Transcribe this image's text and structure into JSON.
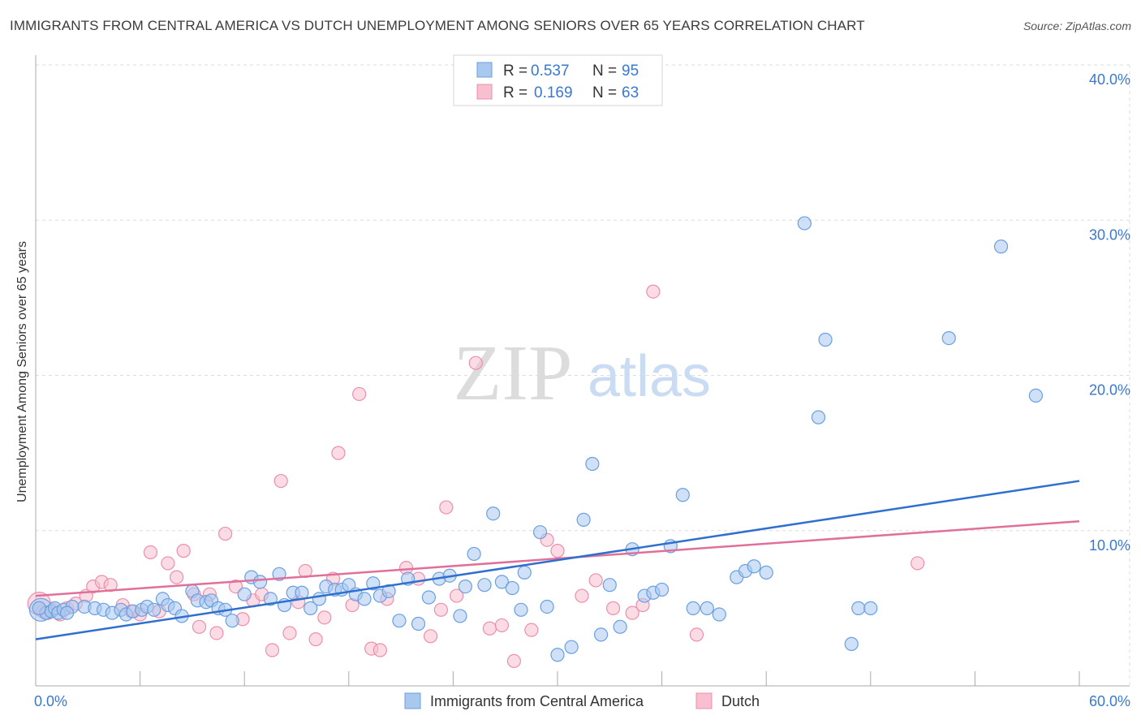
{
  "title": "IMMIGRANTS FROM CENTRAL AMERICA VS DUTCH UNEMPLOYMENT AMONG SENIORS OVER 65 YEARS CORRELATION CHART",
  "source": "Source: ZipAtlas.com",
  "watermark": {
    "zip": "ZIP",
    "atlas": "atlas"
  },
  "legend": {
    "rows": [
      {
        "r_label": "R =",
        "r_value": "0.537",
        "n_label": "N =",
        "n_value": "95"
      },
      {
        "r_label": "R =",
        "r_value": "0.169",
        "n_label": "N =",
        "n_value": "63"
      }
    ]
  },
  "colors": {
    "blue_fill": "#a9c8f0",
    "blue_stroke": "#6a9fe0",
    "blue_line": "#2f6fce",
    "blue_text": "#3a78d0",
    "pink_fill": "#f7bfd0",
    "pink_stroke": "#ec8fad",
    "pink_line": "#e0709a",
    "grid": "#dddddd",
    "axis_text": "#3a78d0"
  },
  "chart_data": {
    "type": "scatter",
    "title": "IMMIGRANTS FROM CENTRAL AMERICA VS DUTCH UNEMPLOYMENT AMONG SENIORS OVER 65 YEARS CORRELATION CHART",
    "xlabel": "",
    "ylabel": "Unemployment Among Seniors over 65 years",
    "xlim": [
      0,
      60
    ],
    "ylim": [
      0,
      40
    ],
    "x_tick_labels": [
      "0.0%",
      "60.0%"
    ],
    "y_ticks": [
      10,
      20,
      30,
      40
    ],
    "y_tick_labels": [
      "10.0%",
      "20.0%",
      "30.0%",
      "40.0%"
    ],
    "grid": true,
    "legend_position": "top-center",
    "series": [
      {
        "name": "Immigrants from Central America",
        "color": "#6a9fe0",
        "trend": [
          [
            0,
            3.0
          ],
          [
            60,
            13.2
          ]
        ],
        "points": [
          [
            0.3,
            4.9
          ],
          [
            0.6,
            4.7
          ],
          [
            0.9,
            4.8
          ],
          [
            1.1,
            5.0
          ],
          [
            1.3,
            4.7
          ],
          [
            1.6,
            4.9
          ],
          [
            2.1,
            5.1
          ],
          [
            2.8,
            5.1
          ],
          [
            3.4,
            5.0
          ],
          [
            3.9,
            4.9
          ],
          [
            4.4,
            4.7
          ],
          [
            4.9,
            4.9
          ],
          [
            5.2,
            4.6
          ],
          [
            5.6,
            4.8
          ],
          [
            6.1,
            4.9
          ],
          [
            6.4,
            5.1
          ],
          [
            6.8,
            4.9
          ],
          [
            7.3,
            5.6
          ],
          [
            7.6,
            5.2
          ],
          [
            8.0,
            5.0
          ],
          [
            8.4,
            4.5
          ],
          [
            9.0,
            6.1
          ],
          [
            9.3,
            5.5
          ],
          [
            9.8,
            5.4
          ],
          [
            10.1,
            5.5
          ],
          [
            10.5,
            5.0
          ],
          [
            10.9,
            4.9
          ],
          [
            11.3,
            4.2
          ],
          [
            12.0,
            5.9
          ],
          [
            12.4,
            7.0
          ],
          [
            12.9,
            6.7
          ],
          [
            13.5,
            5.6
          ],
          [
            14.0,
            7.2
          ],
          [
            14.3,
            5.2
          ],
          [
            14.8,
            6.0
          ],
          [
            15.3,
            6.0
          ],
          [
            15.8,
            5.0
          ],
          [
            16.3,
            5.6
          ],
          [
            16.7,
            6.4
          ],
          [
            17.2,
            6.2
          ],
          [
            17.6,
            6.2
          ],
          [
            18.0,
            6.5
          ],
          [
            18.4,
            5.9
          ],
          [
            18.9,
            5.6
          ],
          [
            19.4,
            6.6
          ],
          [
            19.8,
            5.8
          ],
          [
            20.3,
            6.1
          ],
          [
            20.9,
            4.2
          ],
          [
            21.4,
            6.9
          ],
          [
            22.0,
            4.0
          ],
          [
            22.6,
            5.7
          ],
          [
            23.2,
            6.9
          ],
          [
            23.8,
            7.1
          ],
          [
            24.4,
            4.5
          ],
          [
            24.7,
            6.4
          ],
          [
            25.2,
            8.5
          ],
          [
            25.8,
            6.5
          ],
          [
            26.3,
            11.1
          ],
          [
            26.8,
            6.7
          ],
          [
            27.4,
            6.3
          ],
          [
            27.9,
            4.9
          ],
          [
            28.1,
            7.3
          ],
          [
            29.0,
            9.9
          ],
          [
            29.4,
            5.1
          ],
          [
            30.0,
            2.0
          ],
          [
            30.8,
            2.5
          ],
          [
            31.5,
            10.7
          ],
          [
            32.0,
            14.3
          ],
          [
            32.5,
            3.3
          ],
          [
            33.0,
            6.5
          ],
          [
            33.6,
            3.8
          ],
          [
            34.3,
            8.8
          ],
          [
            35.0,
            5.8
          ],
          [
            35.5,
            6.0
          ],
          [
            36.0,
            6.2
          ],
          [
            36.5,
            9.0
          ],
          [
            37.2,
            12.3
          ],
          [
            37.8,
            5.0
          ],
          [
            38.6,
            5.0
          ],
          [
            39.3,
            4.6
          ],
          [
            40.3,
            7.0
          ],
          [
            40.8,
            7.4
          ],
          [
            41.3,
            7.7
          ],
          [
            42.0,
            7.3
          ],
          [
            44.2,
            29.8
          ],
          [
            45.0,
            17.3
          ],
          [
            45.4,
            22.3
          ],
          [
            46.9,
            2.7
          ],
          [
            47.3,
            5.0
          ],
          [
            48.0,
            5.0
          ],
          [
            52.5,
            22.4
          ],
          [
            55.5,
            28.3
          ],
          [
            57.5,
            18.7
          ],
          [
            0.2,
            5.0
          ],
          [
            1.8,
            4.7
          ]
        ]
      },
      {
        "name": "Dutch",
        "color": "#ec8fad",
        "trend": [
          [
            0,
            5.8
          ],
          [
            60,
            10.6
          ]
        ],
        "points": [
          [
            0.2,
            5.3
          ],
          [
            0.4,
            4.8
          ],
          [
            0.7,
            4.7
          ],
          [
            1.0,
            4.9
          ],
          [
            1.4,
            4.6
          ],
          [
            1.8,
            5.0
          ],
          [
            2.3,
            5.3
          ],
          [
            2.9,
            5.8
          ],
          [
            3.3,
            6.4
          ],
          [
            3.8,
            6.7
          ],
          [
            4.3,
            6.5
          ],
          [
            5.0,
            5.2
          ],
          [
            5.5,
            4.8
          ],
          [
            6.0,
            4.6
          ],
          [
            6.6,
            8.6
          ],
          [
            7.1,
            4.8
          ],
          [
            7.6,
            7.9
          ],
          [
            8.1,
            7.0
          ],
          [
            8.5,
            8.7
          ],
          [
            9.1,
            5.9
          ],
          [
            9.4,
            3.8
          ],
          [
            10.0,
            5.9
          ],
          [
            10.4,
            3.4
          ],
          [
            10.9,
            9.8
          ],
          [
            11.5,
            6.4
          ],
          [
            11.9,
            4.3
          ],
          [
            12.5,
            5.5
          ],
          [
            13.0,
            5.9
          ],
          [
            13.6,
            2.3
          ],
          [
            14.1,
            13.2
          ],
          [
            14.6,
            3.4
          ],
          [
            15.1,
            5.4
          ],
          [
            15.5,
            7.4
          ],
          [
            16.1,
            3.0
          ],
          [
            16.6,
            4.4
          ],
          [
            17.1,
            6.9
          ],
          [
            17.4,
            15.0
          ],
          [
            18.2,
            5.2
          ],
          [
            18.6,
            18.8
          ],
          [
            19.3,
            2.4
          ],
          [
            19.8,
            2.3
          ],
          [
            20.2,
            5.6
          ],
          [
            21.3,
            7.6
          ],
          [
            22.0,
            6.9
          ],
          [
            22.7,
            3.2
          ],
          [
            23.3,
            4.9
          ],
          [
            23.6,
            11.5
          ],
          [
            24.2,
            5.8
          ],
          [
            25.3,
            20.8
          ],
          [
            26.1,
            3.7
          ],
          [
            26.8,
            3.9
          ],
          [
            27.5,
            1.6
          ],
          [
            28.5,
            3.6
          ],
          [
            29.4,
            9.4
          ],
          [
            30.0,
            8.7
          ],
          [
            31.4,
            5.8
          ],
          [
            32.2,
            6.8
          ],
          [
            33.2,
            5.0
          ],
          [
            34.3,
            4.7
          ],
          [
            34.9,
            5.2
          ],
          [
            35.5,
            25.4
          ],
          [
            38.0,
            3.3
          ],
          [
            50.7,
            7.9
          ]
        ]
      }
    ]
  },
  "bottom_legend": {
    "items": [
      "Immigrants from Central America",
      "Dutch"
    ]
  }
}
